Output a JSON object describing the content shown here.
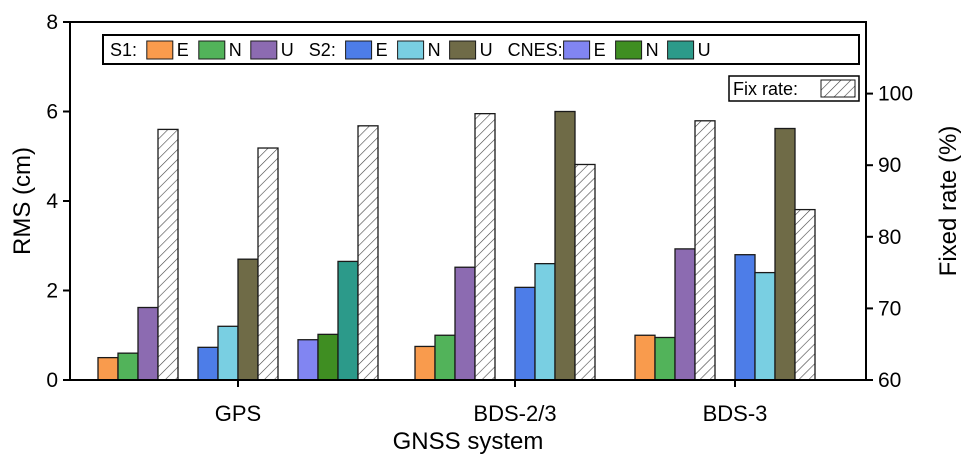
{
  "chart_data": {
    "type": "bar",
    "xlabel": "GNSS system",
    "ylabel": "RMS (cm)",
    "y2label": "Fixed rate (%)",
    "ylim": [
      0,
      8
    ],
    "y2lim": [
      60,
      110
    ],
    "yticks": [
      "0",
      "2",
      "4",
      "6",
      "8"
    ],
    "y2ticks": [
      "60",
      "70",
      "80",
      "90",
      "100"
    ],
    "categories": [
      "GPS",
      "BDS-2/3",
      "BDS-3"
    ],
    "legend": {
      "position": "top",
      "groups": [
        {
          "label": "S1:",
          "items": [
            {
              "label": "E",
              "color": "#f99b4d"
            },
            {
              "label": "N",
              "color": "#52b35a"
            },
            {
              "label": "U",
              "color": "#8c6bb1"
            }
          ]
        },
        {
          "label": "S2:",
          "items": [
            {
              "label": "E",
              "color": "#4d7de8"
            },
            {
              "label": "N",
              "color": "#79cfe2"
            },
            {
              "label": "U",
              "color": "#6f6b47"
            }
          ]
        },
        {
          "label": "CNES:",
          "items": [
            {
              "label": "E",
              "color": "#8185f2"
            },
            {
              "label": "N",
              "color": "#3f8e22"
            },
            {
              "label": "U",
              "color": "#2c9a8a"
            }
          ]
        }
      ],
      "fix_rate_label": "Fix rate:"
    },
    "series": [
      {
        "name": "S1 E",
        "color": "#f99b4d",
        "values": [
          0.5,
          0.75,
          1.0
        ]
      },
      {
        "name": "S1 N",
        "color": "#52b35a",
        "values": [
          0.6,
          1.0,
          0.95
        ]
      },
      {
        "name": "S1 U",
        "color": "#8c6bb1",
        "values": [
          1.62,
          2.52,
          2.93
        ]
      },
      {
        "name": "S1 Fix rate",
        "axis": "y2",
        "pattern": "hatch",
        "values": [
          95.0,
          97.2,
          96.2
        ]
      },
      {
        "name": "S2 E",
        "color": "#4d7de8",
        "values": [
          0.73,
          2.07,
          2.8
        ]
      },
      {
        "name": "S2 N",
        "color": "#79cfe2",
        "values": [
          1.2,
          2.6,
          2.4
        ]
      },
      {
        "name": "S2 U",
        "color": "#6f6b47",
        "values": [
          2.7,
          6.0,
          5.62
        ]
      },
      {
        "name": "S2 Fix rate",
        "axis": "y2",
        "pattern": "hatch",
        "values": [
          92.4,
          90.1,
          83.8
        ]
      },
      {
        "name": "CNES E",
        "color": "#8185f2",
        "values": [
          0.9,
          null,
          null
        ]
      },
      {
        "name": "CNES N",
        "color": "#3f8e22",
        "values": [
          1.02,
          null,
          null
        ]
      },
      {
        "name": "CNES U",
        "color": "#2c9a8a",
        "values": [
          2.65,
          null,
          null
        ]
      },
      {
        "name": "CNES Fix rate",
        "axis": "y2",
        "pattern": "hatch",
        "values": [
          95.5,
          null,
          null
        ]
      }
    ]
  }
}
